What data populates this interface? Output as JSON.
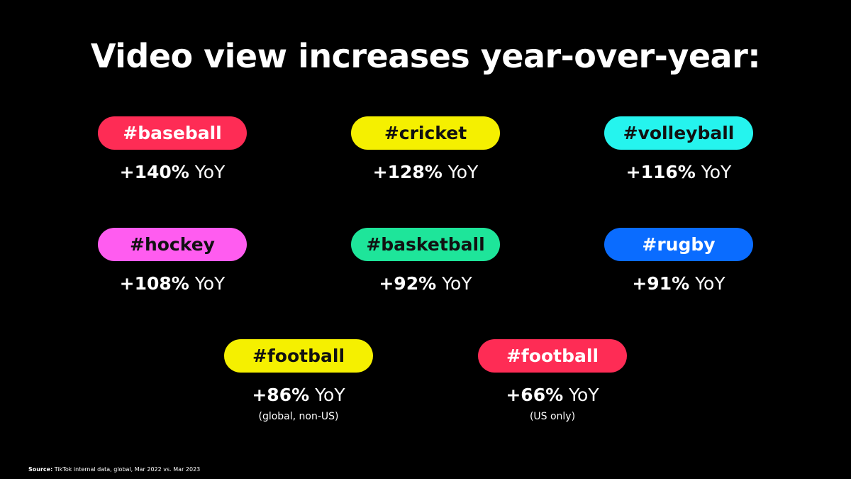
{
  "title": "Video view increases year-over-year:",
  "cards": [
    {
      "tag": "#baseball",
      "percent": "+140%",
      "suffix": " YoY",
      "note": "",
      "pill_color": "#fe2c55",
      "text_color": "#ffffff"
    },
    {
      "tag": "#cricket",
      "percent": "+128%",
      "suffix": " YoY",
      "note": "",
      "pill_color": "#f5f000",
      "text_color": "#111111"
    },
    {
      "tag": "#volleyball",
      "percent": "+116%",
      "suffix": " YoY",
      "note": "",
      "pill_color": "#25f4ee",
      "text_color": "#111111"
    },
    {
      "tag": "#hockey",
      "percent": "+108%",
      "suffix": " YoY",
      "note": "",
      "pill_color": "#ff5cf0",
      "text_color": "#111111"
    },
    {
      "tag": "#basketball",
      "percent": "+92%",
      "suffix": " YoY",
      "note": "",
      "pill_color": "#1ee59a",
      "text_color": "#111111"
    },
    {
      "tag": "#rugby",
      "percent": "+91%",
      "suffix": " YoY",
      "note": "",
      "pill_color": "#0a6cff",
      "text_color": "#ffffff"
    },
    {
      "tag": "#football",
      "percent": "+86%",
      "suffix": " YoY",
      "note": "(global, non-US)",
      "pill_color": "#f5f000",
      "text_color": "#111111"
    },
    {
      "tag": "#football",
      "percent": "+66%",
      "suffix": " YoY",
      "note": "(US only)",
      "pill_color": "#fe2c55",
      "text_color": "#ffffff"
    }
  ],
  "source": {
    "label": "Source:",
    "text": " TikTok internal data, global, Mar 2022 vs. Mar 2023"
  }
}
